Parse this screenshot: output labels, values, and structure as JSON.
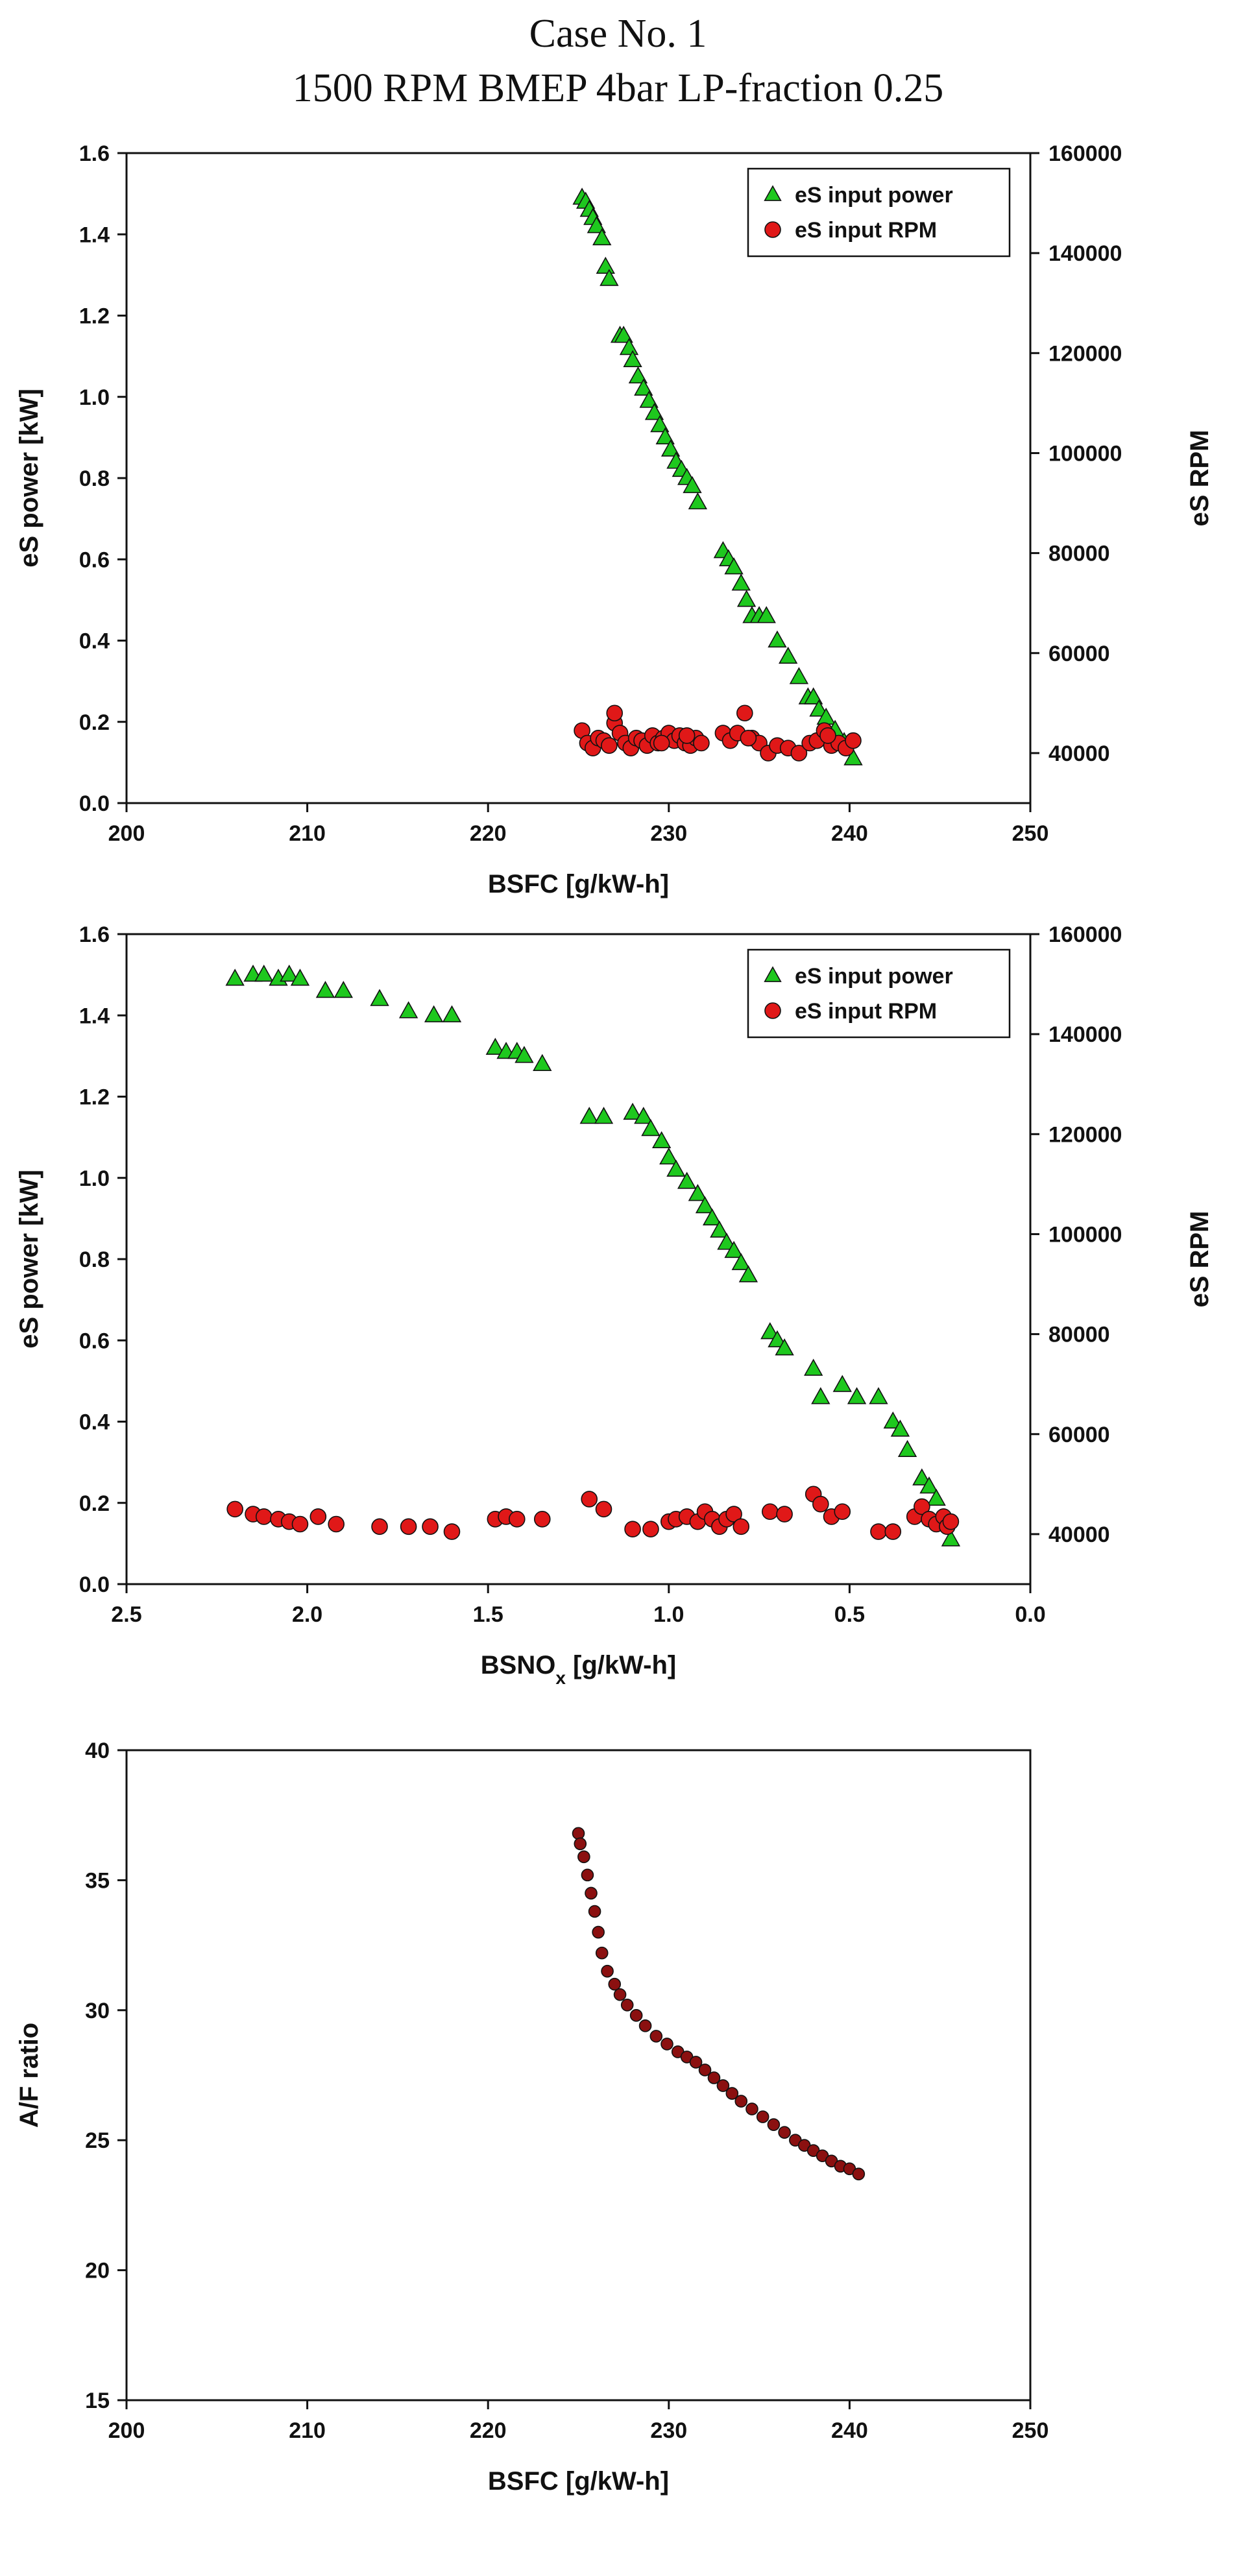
{
  "page_title": {
    "line1": "Case No. 1",
    "line2": "1500 RPM BMEP 4bar LP-fraction 0.25"
  },
  "colors": {
    "power": "#1ec81e",
    "rpm": "#e01818",
    "af": "#8b1010",
    "edge": "#111111"
  },
  "chart_data": [
    {
      "type": "scatter",
      "id": "chart1",
      "title": "",
      "xlabel": "BSFC [g/kW-h]",
      "ylabel": "eS power [kW]",
      "y2label": "eS RPM",
      "xlim": [
        200,
        250
      ],
      "ylim": [
        0,
        1.6
      ],
      "y2lim": [
        30000,
        160000
      ],
      "xticks": [
        "200",
        "210",
        "220",
        "230",
        "240",
        "250"
      ],
      "yticks": [
        "0.0",
        "0.2",
        "0.4",
        "0.6",
        "0.8",
        "1.0",
        "1.2",
        "1.4",
        "1.6"
      ],
      "y2ticks": [
        "40000",
        "60000",
        "80000",
        "100000",
        "120000",
        "140000",
        "160000"
      ],
      "legend": [
        "eS input power",
        "eS input RPM"
      ],
      "legend_position": "top-right",
      "series": [
        {
          "name": "eS input power",
          "axis": "left",
          "marker": "triangle",
          "x": [
            225.2,
            225.4,
            225.6,
            225.8,
            226.0,
            226.3,
            226.5,
            226.7,
            227.3,
            227.5,
            227.8,
            228.0,
            228.3,
            228.6,
            228.9,
            229.2,
            229.5,
            229.8,
            230.1,
            230.4,
            230.7,
            231.0,
            231.3,
            231.6,
            233.0,
            233.3,
            233.6,
            234.0,
            234.3,
            234.6,
            235.0,
            235.4,
            236.0,
            236.6,
            237.2,
            237.7,
            238.0,
            238.3,
            238.7,
            239.2,
            239.7,
            240.2
          ],
          "y": [
            1.49,
            1.48,
            1.46,
            1.44,
            1.42,
            1.39,
            1.32,
            1.29,
            1.15,
            1.15,
            1.12,
            1.09,
            1.05,
            1.02,
            0.99,
            0.96,
            0.93,
            0.9,
            0.87,
            0.84,
            0.82,
            0.8,
            0.78,
            0.74,
            0.62,
            0.6,
            0.58,
            0.54,
            0.5,
            0.46,
            0.46,
            0.46,
            0.4,
            0.36,
            0.31,
            0.26,
            0.26,
            0.23,
            0.21,
            0.18,
            0.15,
            0.11
          ]
        },
        {
          "name": "eS input RPM",
          "axis": "right",
          "marker": "circle",
          "x": [
            225.2,
            225.5,
            225.8,
            226.1,
            226.4,
            226.7,
            227.0,
            227.3,
            227.6,
            227.9,
            228.2,
            228.5,
            228.8,
            229.1,
            229.4,
            229.7,
            230.0,
            230.3,
            230.6,
            230.9,
            231.2,
            231.5,
            231.8,
            233.0,
            233.4,
            233.8,
            234.2,
            234.6,
            235.0,
            235.5,
            236.0,
            236.6,
            237.2,
            237.8,
            238.2,
            238.6,
            239.0,
            239.4,
            239.8,
            240.2,
            227.0,
            234.4,
            229.6,
            231.0,
            238.8
          ],
          "y": [
            44500,
            42000,
            41000,
            43000,
            42500,
            41500,
            46000,
            44000,
            42000,
            41000,
            43000,
            42500,
            41500,
            43500,
            42000,
            43000,
            44000,
            42500,
            43500,
            42000,
            41500,
            43000,
            42000,
            44000,
            42500,
            44000,
            48000,
            43000,
            42000,
            40000,
            41500,
            41000,
            40000,
            42000,
            42500,
            44500,
            41500,
            42000,
            41000,
            42500,
            48000,
            43000,
            42000,
            43500,
            43500
          ]
        }
      ]
    },
    {
      "type": "scatter",
      "id": "chart2",
      "title": "",
      "xlabel": "BSNO",
      "xlabel_sub": "x",
      "xlabel_tail": " [g/kW-h]",
      "ylabel": "eS power [kW]",
      "y2label": "eS RPM",
      "xlim": [
        2.5,
        0.0
      ],
      "ylim": [
        0,
        1.6
      ],
      "y2lim": [
        30000,
        160000
      ],
      "xticks": [
        "2.5",
        "2.0",
        "1.5",
        "1.0",
        "0.5",
        "0.0"
      ],
      "yticks": [
        "0.0",
        "0.2",
        "0.4",
        "0.6",
        "0.8",
        "1.0",
        "1.2",
        "1.4",
        "1.6"
      ],
      "y2ticks": [
        "40000",
        "60000",
        "80000",
        "100000",
        "120000",
        "140000",
        "160000"
      ],
      "legend": [
        "eS input power",
        "eS input RPM"
      ],
      "legend_position": "top-right",
      "series": [
        {
          "name": "eS input power",
          "axis": "left",
          "marker": "triangle",
          "x": [
            2.2,
            2.15,
            2.12,
            2.08,
            2.05,
            2.02,
            1.95,
            1.9,
            1.8,
            1.72,
            1.65,
            1.6,
            1.48,
            1.45,
            1.42,
            1.4,
            1.35,
            1.22,
            1.18,
            1.1,
            1.07,
            1.05,
            1.02,
            1.0,
            0.98,
            0.95,
            0.92,
            0.9,
            0.88,
            0.86,
            0.84,
            0.82,
            0.8,
            0.78,
            0.72,
            0.7,
            0.68,
            0.6,
            0.58,
            0.52,
            0.48,
            0.42,
            0.38,
            0.36,
            0.34,
            0.3,
            0.28,
            0.26,
            0.24,
            0.22
          ],
          "y": [
            1.49,
            1.5,
            1.5,
            1.49,
            1.5,
            1.49,
            1.46,
            1.46,
            1.44,
            1.41,
            1.4,
            1.4,
            1.32,
            1.31,
            1.31,
            1.3,
            1.28,
            1.15,
            1.15,
            1.16,
            1.15,
            1.12,
            1.09,
            1.05,
            1.02,
            0.99,
            0.96,
            0.93,
            0.9,
            0.87,
            0.84,
            0.82,
            0.79,
            0.76,
            0.62,
            0.6,
            0.58,
            0.53,
            0.46,
            0.49,
            0.46,
            0.46,
            0.4,
            0.38,
            0.33,
            0.26,
            0.24,
            0.21,
            0.16,
            0.11
          ]
        },
        {
          "name": "eS input RPM",
          "axis": "right",
          "marker": "circle",
          "x": [
            2.2,
            2.15,
            2.12,
            2.08,
            2.05,
            2.02,
            1.97,
            1.92,
            1.8,
            1.72,
            1.66,
            1.6,
            1.48,
            1.45,
            1.42,
            1.35,
            1.22,
            1.18,
            1.1,
            1.05,
            1.0,
            0.98,
            0.95,
            0.92,
            0.9,
            0.88,
            0.86,
            0.84,
            0.82,
            0.8,
            0.72,
            0.68,
            0.6,
            0.58,
            0.55,
            0.52,
            0.42,
            0.38,
            0.32,
            0.3,
            0.28,
            0.26,
            0.24,
            0.23,
            0.22
          ],
          "y": [
            45000,
            44000,
            43500,
            43000,
            42500,
            42000,
            43500,
            42000,
            41500,
            41500,
            41500,
            40500,
            43000,
            43500,
            43000,
            43000,
            47000,
            45000,
            41000,
            41000,
            42500,
            43000,
            43500,
            42500,
            44500,
            43000,
            41500,
            43000,
            44000,
            41500,
            44500,
            44000,
            48000,
            46000,
            43500,
            44500,
            40500,
            40500,
            43500,
            45500,
            43000,
            42000,
            43500,
            41500,
            42500
          ]
        }
      ]
    },
    {
      "type": "scatter",
      "id": "chart3",
      "title": "",
      "xlabel": "BSFC [g/kW-h]",
      "ylabel": "A/F ratio",
      "xlim": [
        200,
        250
      ],
      "ylim": [
        15,
        40
      ],
      "xticks": [
        "200",
        "210",
        "220",
        "230",
        "240",
        "250"
      ],
      "yticks": [
        "15",
        "20",
        "25",
        "30",
        "35",
        "40"
      ],
      "series": [
        {
          "name": "A/F ratio",
          "axis": "left",
          "marker": "circle",
          "x": [
            225.0,
            225.1,
            225.3,
            225.5,
            225.7,
            225.9,
            226.1,
            226.3,
            226.6,
            227.0,
            227.3,
            227.7,
            228.2,
            228.7,
            229.3,
            229.9,
            230.5,
            231.0,
            231.5,
            232.0,
            232.5,
            233.0,
            233.5,
            234.0,
            234.6,
            235.2,
            235.8,
            236.4,
            237.0,
            237.5,
            238.0,
            238.5,
            239.0,
            239.5,
            240.0,
            240.5
          ],
          "y": [
            36.8,
            36.4,
            35.9,
            35.2,
            34.5,
            33.8,
            33.0,
            32.2,
            31.5,
            31.0,
            30.6,
            30.2,
            29.8,
            29.4,
            29.0,
            28.7,
            28.4,
            28.2,
            28.0,
            27.7,
            27.4,
            27.1,
            26.8,
            26.5,
            26.2,
            25.9,
            25.6,
            25.3,
            25.0,
            24.8,
            24.6,
            24.4,
            24.2,
            24.0,
            23.9,
            23.7
          ]
        }
      ]
    }
  ]
}
